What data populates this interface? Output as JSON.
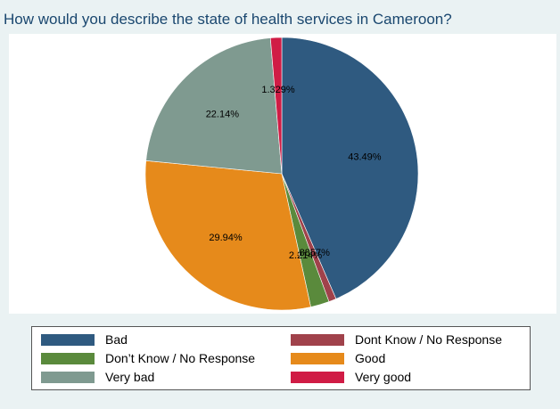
{
  "chart_data": {
    "type": "pie",
    "title": "How would you describe the state of health services in Cameroon?",
    "slices": [
      {
        "name": "Bad",
        "value": 43.49,
        "label": "43.49%",
        "color": "#2f5a80"
      },
      {
        "name": "Dont Know / No Response",
        "value": 0.8857,
        "label": ".8857%",
        "color": "#a0424b"
      },
      {
        "name": "Don’t Know / No Response",
        "value": 2.214,
        "label": "2.214%",
        "color": "#5a8a3c"
      },
      {
        "name": "Good",
        "value": 29.94,
        "label": "29.94%",
        "color": "#e68a1b"
      },
      {
        "name": "Very bad",
        "value": 22.14,
        "label": "22.14%",
        "color": "#7f9a90"
      },
      {
        "name": "Very good",
        "value": 1.329,
        "label": "1.329%",
        "color": "#d01c45"
      }
    ],
    "legend_order": [
      "Bad",
      "Dont Know / No Response",
      "Don’t Know / No Response",
      "Good",
      "Very bad",
      "Very good"
    ],
    "legend_placement": "bottom",
    "background_color": "#eaf2f3",
    "title_color": "#1a476f"
  }
}
